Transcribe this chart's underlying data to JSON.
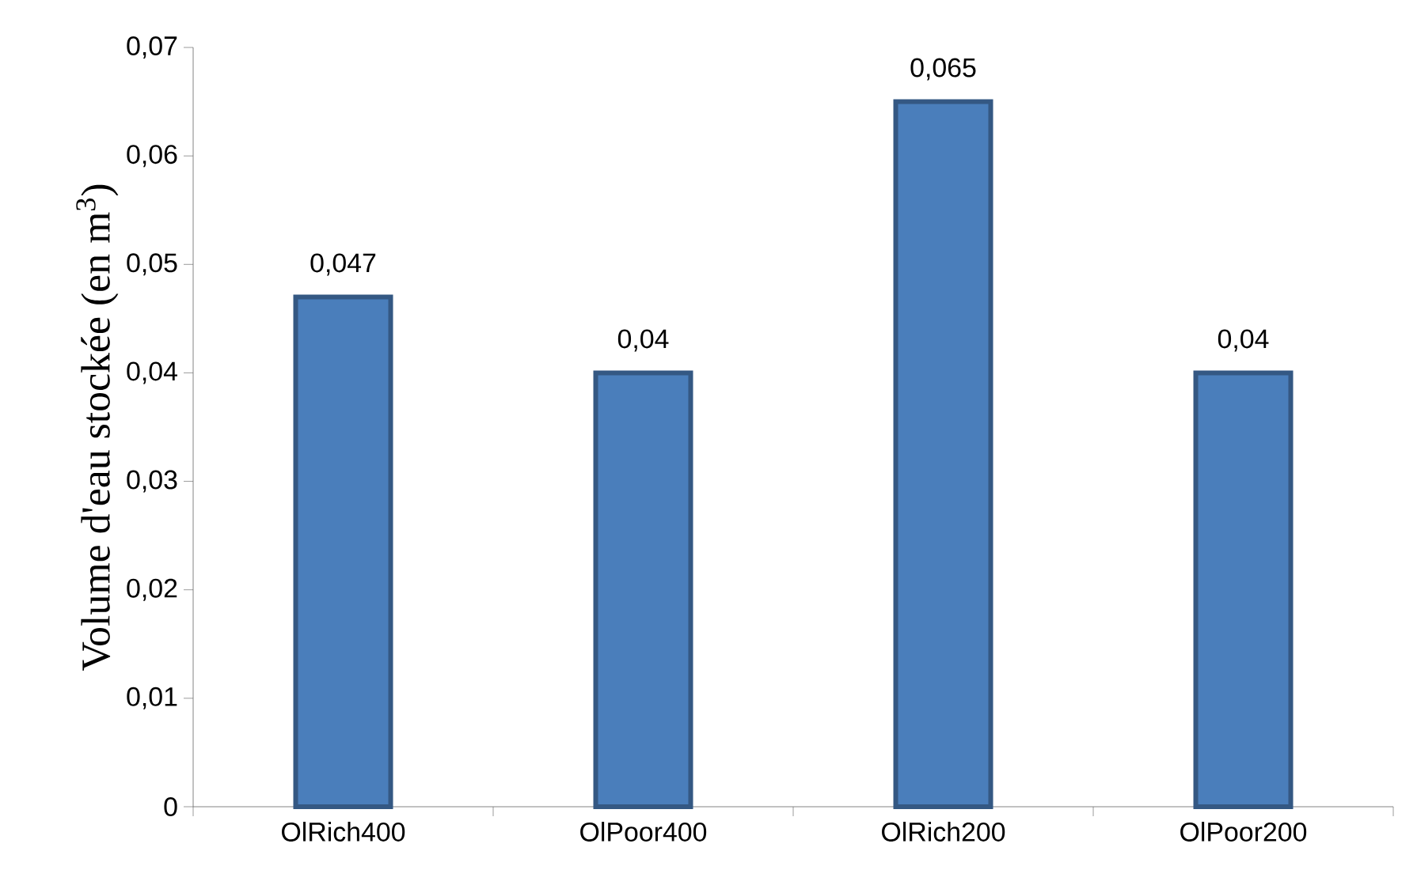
{
  "chart_data": {
    "type": "bar",
    "ylabel": "Volume d'eau stockée (en m$^{3}$)",
    "categories": [
      "OlRich400",
      "OlPoor400",
      "OlRich200",
      "OlPoor200"
    ],
    "values": [
      0.047,
      0.04,
      0.065,
      0.04
    ],
    "value_labels": [
      "0,047",
      "0,04",
      "0,065",
      "0,04"
    ],
    "color": "#4a7ebb",
    "ylim": [
      0,
      0.07
    ],
    "yticks": [
      0,
      {
        "value": 0.01,
        "label": "0,01"
      },
      {
        "value": 0.02,
        "label": "0,02"
      },
      {
        "value": 0.03,
        "label": "0,03"
      },
      {
        "value": 0.04,
        "label": "0,04"
      },
      {
        "value": 0.05,
        "label": "0,05"
      },
      {
        "value": 0.06,
        "label": "0,06"
      },
      {
        "value": 0.07,
        "label": "0,07"
      }
    ],
    "grid": false
  }
}
